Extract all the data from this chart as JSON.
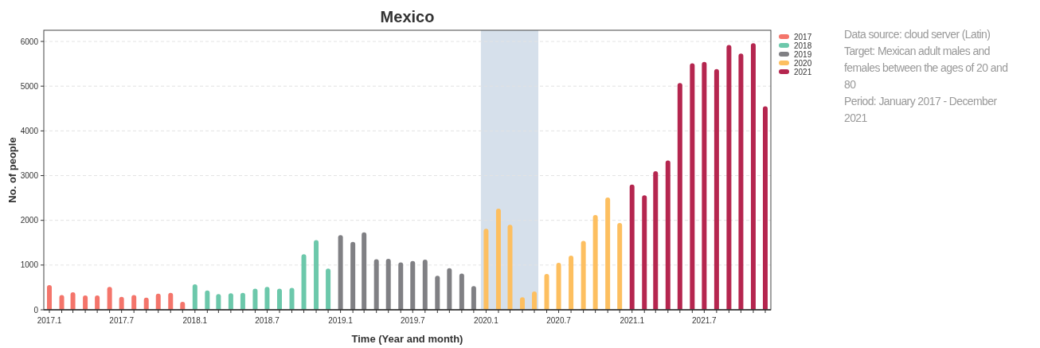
{
  "chart_data": {
    "type": "bar",
    "title": "Mexico",
    "xlabel": "Time (Year and month)",
    "ylabel": "No. of people",
    "xlim": [
      "2016-12-18",
      "2021-12-15"
    ],
    "ylim": [
      0,
      6250
    ],
    "yticks": [
      0,
      1000,
      2000,
      3000,
      4000,
      5000,
      6000
    ],
    "xticks": [
      {
        "value": "2017-01",
        "label": "2017.1"
      },
      {
        "value": "2017-02",
        "label": null
      },
      {
        "value": "2017-03",
        "label": null
      },
      {
        "value": "2017-04",
        "label": null
      },
      {
        "value": "2017-05",
        "label": null
      },
      {
        "value": "2017-06",
        "label": null
      },
      {
        "value": "2017-07",
        "label": "2017.7"
      },
      {
        "value": "2017-08",
        "label": null
      },
      {
        "value": "2017-09",
        "label": null
      },
      {
        "value": "2017-10",
        "label": null
      },
      {
        "value": "2017-11",
        "label": null
      },
      {
        "value": "2017-12",
        "label": null
      },
      {
        "value": "2018-01",
        "label": "2018.1"
      },
      {
        "value": "2018-02",
        "label": null
      },
      {
        "value": "2018-03",
        "label": null
      },
      {
        "value": "2018-04",
        "label": null
      },
      {
        "value": "2018-05",
        "label": null
      },
      {
        "value": "2018-06",
        "label": null
      },
      {
        "value": "2018-07",
        "label": "2018.7"
      },
      {
        "value": "2018-08",
        "label": null
      },
      {
        "value": "2018-09",
        "label": null
      },
      {
        "value": "2018-10",
        "label": null
      },
      {
        "value": "2018-11",
        "label": null
      },
      {
        "value": "2018-12",
        "label": null
      },
      {
        "value": "2019-01",
        "label": "2019.1"
      },
      {
        "value": "2019-02",
        "label": null
      },
      {
        "value": "2019-03",
        "label": null
      },
      {
        "value": "2019-04",
        "label": null
      },
      {
        "value": "2019-05",
        "label": null
      },
      {
        "value": "2019-06",
        "label": null
      },
      {
        "value": "2019-07",
        "label": "2019.7"
      },
      {
        "value": "2019-08",
        "label": null
      },
      {
        "value": "2019-09",
        "label": null
      },
      {
        "value": "2019-10",
        "label": null
      },
      {
        "value": "2019-11",
        "label": null
      },
      {
        "value": "2019-12",
        "label": null
      },
      {
        "value": "2020-01",
        "label": "2020.1"
      },
      {
        "value": "2020-02",
        "label": null
      },
      {
        "value": "2020-03",
        "label": null
      },
      {
        "value": "2020-04",
        "label": null
      },
      {
        "value": "2020-05",
        "label": null
      },
      {
        "value": "2020-06",
        "label": null
      },
      {
        "value": "2020-07",
        "label": "2020.7"
      },
      {
        "value": "2020-08",
        "label": null
      },
      {
        "value": "2020-09",
        "label": null
      },
      {
        "value": "2020-10",
        "label": null
      },
      {
        "value": "2020-11",
        "label": null
      },
      {
        "value": "2020-12",
        "label": null
      },
      {
        "value": "2021-01",
        "label": "2021.1"
      },
      {
        "value": "2021-02",
        "label": null
      },
      {
        "value": "2021-03",
        "label": null
      },
      {
        "value": "2021-04",
        "label": null
      },
      {
        "value": "2021-05",
        "label": null
      },
      {
        "value": "2021-06",
        "label": null
      },
      {
        "value": "2021-07",
        "label": "2021.7"
      },
      {
        "value": "2021-08",
        "label": null
      },
      {
        "value": "2021-09",
        "label": null
      },
      {
        "value": "2021-10",
        "label": null
      },
      {
        "value": "2021-11",
        "label": null
      },
      {
        "value": "2021-12",
        "label": null
      }
    ],
    "grid": "y",
    "legend": "top right",
    "bands": [
      {
        "axis": "x",
        "from": "2019-12-19",
        "to": "2020-05-11",
        "color": "#d6e0eb"
      }
    ],
    "series": [
      {
        "name": "2017",
        "color": "#f4756b",
        "x": [
          "2017-01",
          "2017-02",
          "2017-03",
          "2017-04",
          "2017-05",
          "2017-06",
          "2017-07",
          "2017-08",
          "2017-09",
          "2017-10",
          "2017-11",
          "2017-12"
        ],
        "values": [
          550,
          330,
          390,
          320,
          320,
          510,
          290,
          330,
          270,
          360,
          380,
          180
        ]
      },
      {
        "name": "2018",
        "color": "#6cc8ab",
        "x": [
          "2018-01",
          "2018-02",
          "2018-03",
          "2018-04",
          "2018-05",
          "2018-06",
          "2018-07",
          "2018-08",
          "2018-09",
          "2018-10",
          "2018-11",
          "2018-12"
        ],
        "values": [
          570,
          430,
          350,
          370,
          380,
          470,
          510,
          470,
          490,
          1240,
          1560,
          920
        ]
      },
      {
        "name": "2019",
        "color": "#808084",
        "x": [
          "2019-01",
          "2019-02",
          "2019-03",
          "2019-04",
          "2019-05",
          "2019-06",
          "2019-07",
          "2019-08",
          "2019-09",
          "2019-10",
          "2019-11",
          "2019-12"
        ],
        "values": [
          1670,
          1520,
          1730,
          1130,
          1140,
          1060,
          1090,
          1120,
          760,
          930,
          810,
          530
        ]
      },
      {
        "name": "2020",
        "color": "#fdbf60",
        "x": [
          "2020-01",
          "2020-02",
          "2020-03",
          "2020-04",
          "2020-05",
          "2020-06",
          "2020-07",
          "2020-08",
          "2020-09",
          "2020-10",
          "2020-11",
          "2020-12"
        ],
        "values": [
          1810,
          2260,
          1900,
          280,
          410,
          800,
          1050,
          1210,
          1540,
          2120,
          2510,
          1940
        ]
      },
      {
        "name": "2021",
        "color": "#b5264f",
        "x": [
          "2021-01",
          "2021-02",
          "2021-03",
          "2021-04",
          "2021-05",
          "2021-06",
          "2021-07",
          "2021-08",
          "2021-09",
          "2021-10",
          "2021-11",
          "2021-12"
        ],
        "values": [
          2800,
          2560,
          3100,
          3340,
          5070,
          5510,
          5540,
          5380,
          5920,
          5730,
          5960,
          4550
        ]
      }
    ],
    "annotations": [
      "Data source: cloud server (Latin)",
      "Target: Mexican adult males and females between the ages of 20 and 80",
      "Period: January 2017 - December 2021"
    ]
  }
}
